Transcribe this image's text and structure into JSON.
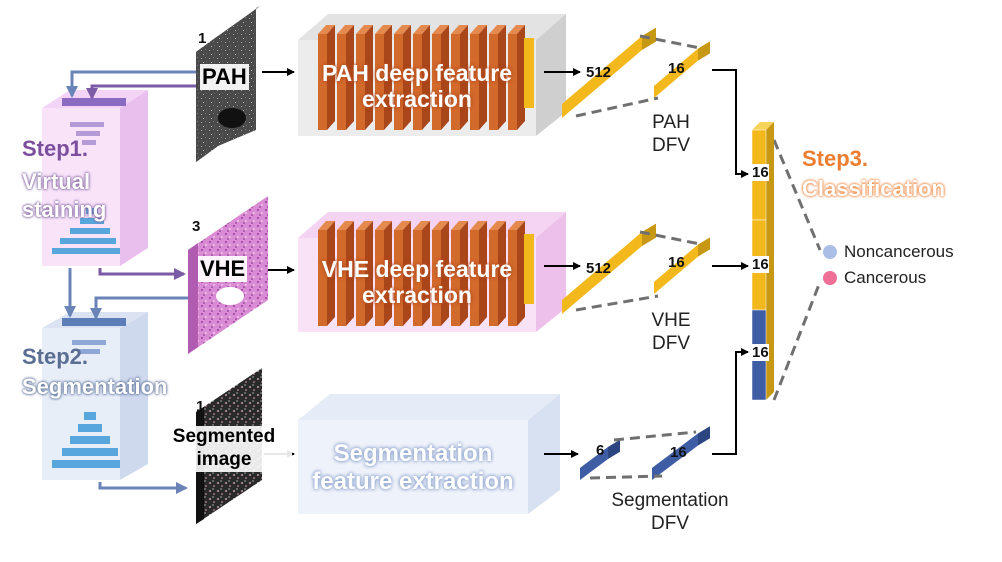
{
  "steps": {
    "step1": {
      "title": "Step1.",
      "subtitle": "Virtual staining",
      "color": "#7b4f9e"
    },
    "step2": {
      "title": "Step2.",
      "subtitle": "Segmentation",
      "color": "#5a6e94"
    },
    "step3": {
      "title": "Step3.",
      "subtitle": "Classification",
      "color": "#ed7d31"
    }
  },
  "inputs": {
    "pah": {
      "label": "PAH",
      "channels": "1"
    },
    "vhe": {
      "label": "VHE",
      "channels": "3"
    },
    "seg": {
      "label": "Segmented image",
      "channels": "1"
    }
  },
  "extractors": {
    "pah": "PAH deep feature extraction",
    "vhe": "VHE deep feature extraction",
    "seg": "Segmentation feature extraction"
  },
  "dims": {
    "pah_in": "512",
    "pah_out": "16",
    "vhe_in": "512",
    "vhe_out": "16",
    "seg_in": "6",
    "seg_out": "16",
    "concat_1": "16",
    "concat_2": "16",
    "concat_3": "16"
  },
  "dfv_labels": {
    "pah": "PAH DFV",
    "vhe": "VHE DFV",
    "seg": "Segmentation DFV"
  },
  "legend": [
    {
      "label": "Noncancerous",
      "color": "#a9bfe6"
    },
    {
      "label": "Cancerous",
      "color": "#ef6f96"
    }
  ],
  "colors": {
    "gold": "#f2b81c",
    "navy": "#3f5da4",
    "orange": "#cf6a2e",
    "arrow_purple": "#7b5aa6",
    "arrow_blue": "#6a84b8"
  }
}
